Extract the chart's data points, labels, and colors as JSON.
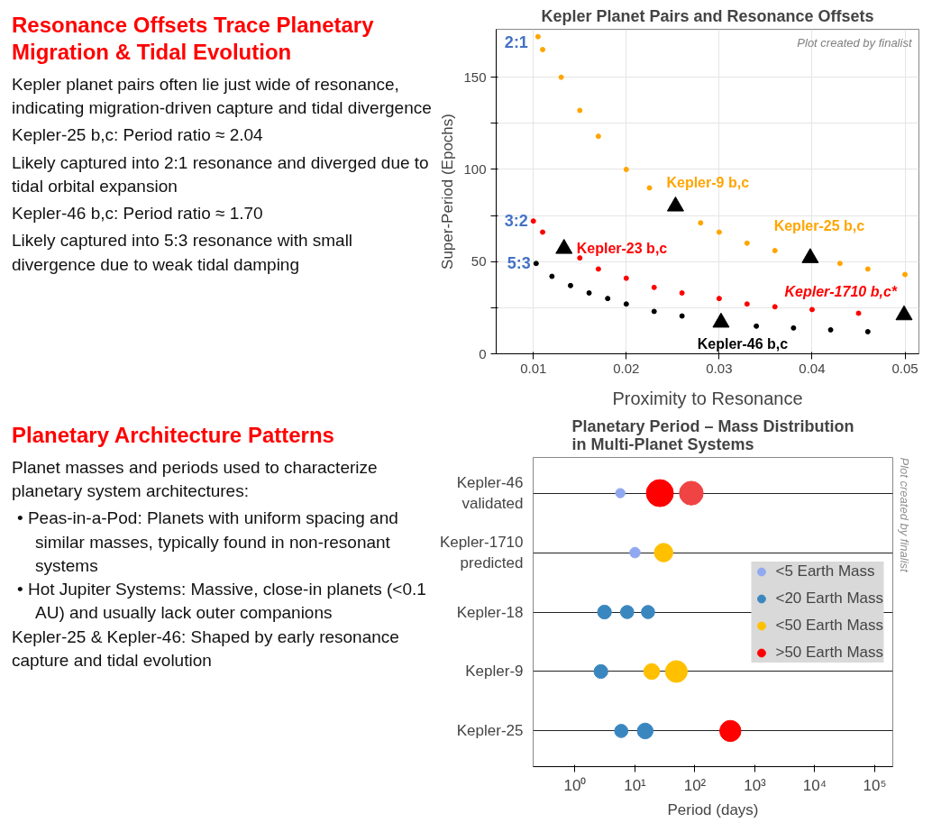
{
  "chart_data": [
    {
      "type": "other",
      "title": "Resonance Offsets Trace Planetary Migration & Tidal Evolution",
      "annotations": [
        "Kepler planet pairs often lie just wide of resonance, indicating migration-driven capture and tidal divergence",
        "Kepler-25 b,c: Period ratio ≈ 2.04",
        "Likely captured into 2:1 resonance and diverged due to tidal orbital expansion",
        "Kepler-46 b,c: Period ratio ≈ 1.70",
        "Likely captured into 5:3 resonance with small divergence due to weak tidal damping"
      ]
    },
    {
      "type": "scatter",
      "title": "Kepler Planet Pairs and Resonance Offsets",
      "xlabel": "Proximity to Resonance",
      "ylabel": "Super-Period (Epochs)",
      "xlim": [
        0.006,
        0.0515
      ],
      "ylim": [
        0,
        176
      ],
      "xticks": [
        0.01,
        0.02,
        0.03,
        0.04,
        0.05
      ],
      "yticks": [
        0,
        {
          "value": 25,
          "label": null
        },
        50,
        {
          "value": 75,
          "label": null
        },
        100,
        {
          "value": 125,
          "label": null
        },
        150
      ],
      "grid": true,
      "series": [
        {
          "color": "#ffa500",
          "marker": "circle",
          "x": [
            0.0105,
            0.011,
            0.013,
            0.015,
            0.017,
            0.02,
            0.0225,
            0.028,
            0.03,
            0.033,
            0.036,
            0.043,
            0.046,
            0.05
          ],
          "values": [
            172,
            165,
            150,
            132,
            118,
            100,
            90,
            71,
            66,
            60,
            56,
            49,
            46,
            43
          ]
        },
        {
          "color": "#ff0000",
          "marker": "circle",
          "x": [
            0.01,
            0.011,
            0.015,
            0.017,
            0.02,
            0.023,
            0.026,
            0.03,
            0.033,
            0.036,
            0.04,
            0.045
          ],
          "values": [
            72,
            66,
            52,
            46,
            41,
            36,
            33,
            30,
            27,
            25.5,
            24,
            22
          ]
        },
        {
          "color": "#000000",
          "marker": "circle",
          "x": [
            0.0103,
            0.012,
            0.014,
            0.016,
            0.018,
            0.02,
            0.023,
            0.026,
            0.034,
            0.038,
            0.042,
            0.046
          ],
          "values": [
            49,
            42,
            37,
            33,
            30,
            27,
            23,
            20.5,
            15,
            14,
            13,
            12
          ]
        },
        {
          "color": "#000000",
          "marker": "triangle",
          "x": [
            0.0133,
            0.0253,
            0.0302,
            0.0398,
            0.0499
          ],
          "values": [
            57,
            80,
            17,
            52,
            21
          ]
        }
      ],
      "annotations": [
        {
          "text": "2:1",
          "x": 0.0105,
          "y": 172
        },
        {
          "text": "3:2",
          "x": 0.01,
          "y": 72
        },
        {
          "text": "5:3",
          "x": 0.0103,
          "y": 49
        },
        {
          "text": "Kepler-9 b,c",
          "x": 0.0253,
          "y": 80
        },
        {
          "text": "Kepler-25 b,c",
          "x": 0.0398,
          "y": 52
        },
        {
          "text": "Kepler-23 b,c",
          "x": 0.0133,
          "y": 57
        },
        {
          "text": "Kepler-1710 b,c*",
          "x": 0.0499,
          "y": 21
        },
        {
          "text": "Kepler-46 b,c",
          "x": 0.0302,
          "y": 17
        },
        "Plot created by finalist"
      ]
    },
    {
      "type": "other",
      "title": "Planetary Architecture Patterns",
      "annotations": [
        "Planet masses and periods used to characterize planetary system architectures:",
        "• Peas-in-a-Pod: Planets with uniform spacing and similar masses, typically found in non-resonant systems",
        "• Hot Jupiter Systems: Massive, close-in planets (<0.1 AU) and usually lack outer companions",
        "Kepler-25 & Kepler-46: Shaped by early resonance capture and tidal evolution"
      ]
    },
    {
      "type": "bubble",
      "orientation": "horizontal",
      "title": "Planetary Period – Mass Distribution in Multi-Planet Systems",
      "xlabel": "Period (days)",
      "categories": [
        "Kepler-46\nvalidated",
        "Kepler-1710\npredicted",
        "Kepler-18",
        "Kepler-9",
        "Kepler-25"
      ],
      "log": "x",
      "xlim": [
        0.2,
        200000
      ],
      "xticks": [
        {
          "value": 1,
          "label": "10⁰"
        },
        {
          "value": 10,
          "label": "10¹"
        },
        {
          "value": 100,
          "label": "10²"
        },
        {
          "value": 1000,
          "label": "10³"
        },
        {
          "value": 10000,
          "label": "10⁴"
        },
        {
          "value": 100000,
          "label": "10⁵"
        }
      ],
      "grid": "y",
      "legend": "right",
      "series": [
        {
          "name": "<5 Earth Mass",
          "color": "#8fa8f0",
          "values": [
            5.7,
            10,
            null,
            null,
            null
          ],
          "sizes": [
            0.12,
            0.15,
            null,
            null,
            null
          ]
        },
        {
          "name": "<20 Earth Mass",
          "color": "#3a87c0",
          "values": [
            null,
            null,
            3.1,
            2.7,
            5.9
          ],
          "sizes": [
            null,
            null,
            0.26,
            0.26,
            0.24
          ]
        },
        {
          "color": "#3a87c0",
          "values": [
            null,
            null,
            7.4,
            null,
            14.8
          ],
          "sizes": [
            null,
            null,
            0.24,
            null,
            0.34
          ]
        },
        {
          "color": "#3a87c0",
          "values": [
            null,
            null,
            16.5,
            null,
            null
          ],
          "sizes": [
            null,
            null,
            0.24,
            null,
            null
          ]
        },
        {
          "name": "<50 Earth Mass",
          "color": "#ffc000",
          "values": [
            null,
            30,
            null,
            19,
            null
          ],
          "sizes": [
            null,
            0.47,
            null,
            0.34,
            null
          ]
        },
        {
          "color": "#ffc000",
          "values": [
            null,
            null,
            null,
            49,
            null
          ],
          "sizes": [
            null,
            null,
            null,
            0.65,
            null
          ]
        },
        {
          "name": ">50 Earth Mass",
          "color": "#ff0000",
          "values": [
            26,
            null,
            null,
            null,
            390
          ],
          "sizes": [
            1,
            null,
            null,
            null,
            0.61
          ]
        },
        {
          "color": "#f04444",
          "values": [
            87,
            null,
            null,
            null,
            null
          ],
          "sizes": [
            0.77,
            null,
            null,
            null,
            null
          ]
        }
      ],
      "annotations": [
        "Plot created by finalist"
      ]
    }
  ]
}
